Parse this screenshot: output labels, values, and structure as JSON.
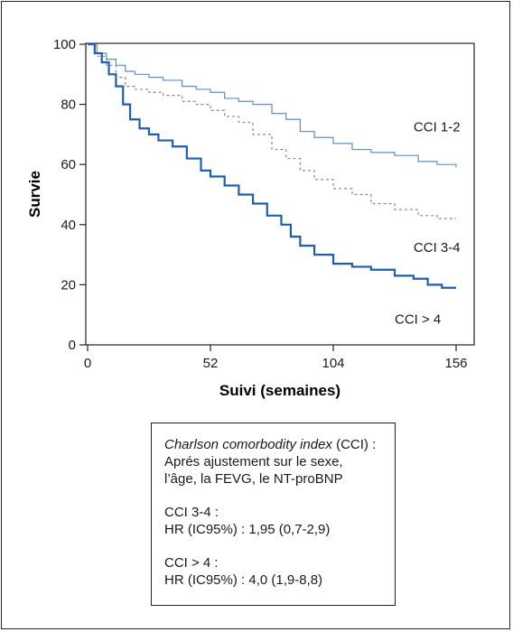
{
  "chart_data": {
    "type": "line",
    "ylabel": "Survie",
    "xlabel": "Suivi (semaines)",
    "xlim": [
      0,
      156
    ],
    "ylim": [
      0,
      100
    ],
    "x_ticks": [
      0,
      52,
      104,
      156
    ],
    "y_ticks": [
      0,
      20,
      40,
      60,
      80,
      100
    ],
    "grid": false,
    "series": [
      {
        "name": "CCI 1-2",
        "color": "#5b8fd6",
        "style": "solid-thin",
        "x": [
          0,
          4,
          8,
          12,
          16,
          20,
          26,
          32,
          40,
          46,
          52,
          58,
          64,
          70,
          78,
          84,
          90,
          96,
          104,
          112,
          120,
          130,
          140,
          148,
          156
        ],
        "y": [
          100,
          97,
          95,
          93,
          91,
          90,
          89,
          88,
          86,
          85,
          84,
          82,
          81,
          80,
          77,
          75,
          71,
          69,
          67,
          65,
          64,
          63,
          61,
          60,
          59
        ]
      },
      {
        "name": "CCI 3-4",
        "color": "#888888",
        "style": "dashed",
        "x": [
          0,
          4,
          8,
          12,
          16,
          20,
          26,
          32,
          40,
          46,
          52,
          58,
          64,
          70,
          78,
          84,
          90,
          96,
          104,
          112,
          120,
          130,
          140,
          148,
          156
        ],
        "y": [
          100,
          96,
          93,
          89,
          86,
          85,
          84,
          83,
          81,
          80,
          78,
          76,
          74,
          70,
          65,
          62,
          58,
          55,
          52,
          50,
          47,
          45,
          43,
          42,
          42
        ]
      },
      {
        "name": "CCI > 4",
        "color": "#1f5fb0",
        "style": "solid-thick",
        "x": [
          0,
          3,
          6,
          9,
          12,
          15,
          18,
          22,
          26,
          30,
          36,
          42,
          48,
          52,
          58,
          64,
          70,
          76,
          82,
          86,
          90,
          96,
          104,
          112,
          120,
          130,
          138,
          144,
          150,
          156
        ],
        "y": [
          100,
          97,
          94,
          90,
          86,
          80,
          75,
          72,
          70,
          68,
          66,
          62,
          58,
          56,
          53,
          50,
          47,
          43,
          40,
          36,
          33,
          30,
          27,
          26,
          25,
          23,
          22,
          20,
          19,
          19
        ]
      }
    ],
    "annotations": [
      {
        "text": "CCI 1-2",
        "x": 138,
        "y": 71
      },
      {
        "text": "CCI 3-4",
        "x": 138,
        "y": 31
      },
      {
        "text": "CCI > 4",
        "x": 130,
        "y": 7
      }
    ]
  },
  "note": {
    "line1_italic": "Charlson comorbodity index",
    "line1_rest": " (CCI) :",
    "line2": "Aprés ajustement sur le sexe,",
    "line3": "l’âge, la FEVG, le NT-proBNP",
    "line4": "CCI 3-4 :",
    "line5": "HR (IC95%) : 1,95 (0,7-2,9)",
    "line6": "CCI > 4 :",
    "line7": "HR (IC95%) : 4,0 (1,9-8,8)"
  }
}
